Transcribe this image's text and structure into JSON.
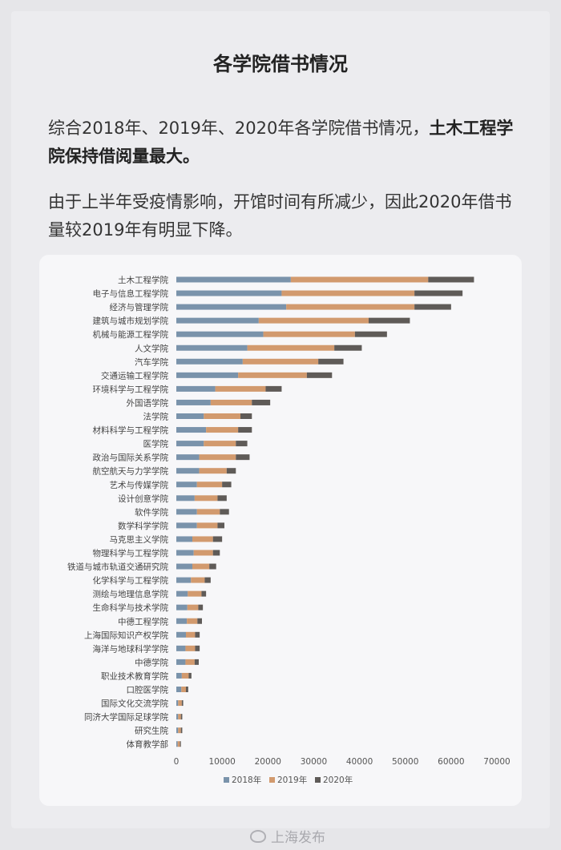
{
  "header": {
    "title": "各学院借书情况"
  },
  "paragraphs": {
    "p1_normal": "综合2018年、2019年、2020年各学院借书情况，",
    "p1_bold": "土木工程学院保持借阅量最大。",
    "p2": "由于上半年受疫情影响，开馆时间有所减少，因此2020年借书量较2019年有明显下降。"
  },
  "watermark": {
    "text": "上海发布",
    "icon": "weibo-icon"
  },
  "chart_data": {
    "type": "bar",
    "orientation": "horizontal",
    "stacked": true,
    "categories": [
      "土木工程学院",
      "电子与信息工程学院",
      "经济与管理学院",
      "建筑与城市规划学院",
      "机械与能源工程学院",
      "人文学院",
      "汽车学院",
      "交通运输工程学院",
      "环境科学与工程学院",
      "外国语学院",
      "法学院",
      "材料科学与工程学院",
      "医学院",
      "政治与国际关系学院",
      "航空航天与力学学院",
      "艺术与传媒学院",
      "设计创意学院",
      "软件学院",
      "数学科学学院",
      "马克思主义学院",
      "物理科学与工程学院",
      "铁道与城市轨道交通研究院",
      "化学科学与工程学院",
      "测绘与地理信息学院",
      "生命科学与技术学院",
      "中德工程学院",
      "上海国际知识产权学院",
      "海洋与地球科学学院",
      "中德学院",
      "职业技术教育学院",
      "口腔医学院",
      "国际文化交流学院",
      "同济大学国际足球学院",
      "研究生院",
      "体育教学部"
    ],
    "series": [
      {
        "name": "2018年",
        "color": "#7a93ab",
        "values": [
          25000,
          23000,
          24000,
          18000,
          19000,
          15500,
          14500,
          13500,
          8500,
          7500,
          6000,
          6500,
          6000,
          5000,
          5000,
          4500,
          4000,
          4500,
          4500,
          3500,
          3800,
          3500,
          3200,
          2500,
          2400,
          2300,
          2100,
          2000,
          2000,
          1200,
          1100,
          400,
          400,
          400,
          300
        ]
      },
      {
        "name": "2019年",
        "color": "#d29a6e",
        "values": [
          30000,
          29000,
          28000,
          24000,
          20000,
          19000,
          16500,
          15000,
          11000,
          9000,
          8000,
          7000,
          7000,
          8000,
          6000,
          5500,
          5000,
          5000,
          4500,
          4500,
          4200,
          3700,
          3000,
          3000,
          2400,
          2300,
          2000,
          2100,
          2000,
          1500,
          1000,
          800,
          600,
          600,
          500
        ]
      },
      {
        "name": "2020年",
        "color": "#5f5b58",
        "values": [
          10000,
          10500,
          8000,
          9000,
          7000,
          6000,
          5500,
          5500,
          3500,
          4000,
          2500,
          3000,
          2500,
          3000,
          2000,
          2000,
          2000,
          2000,
          1500,
          2000,
          1500,
          1500,
          1300,
          1000,
          1000,
          1000,
          1000,
          1000,
          900,
          600,
          500,
          300,
          300,
          300,
          200
        ]
      }
    ],
    "xlim": [
      0,
      70000
    ],
    "xticks": [
      0,
      10000,
      20000,
      30000,
      40000,
      50000,
      60000,
      70000
    ],
    "legend_position": "bottom",
    "grid": false
  }
}
